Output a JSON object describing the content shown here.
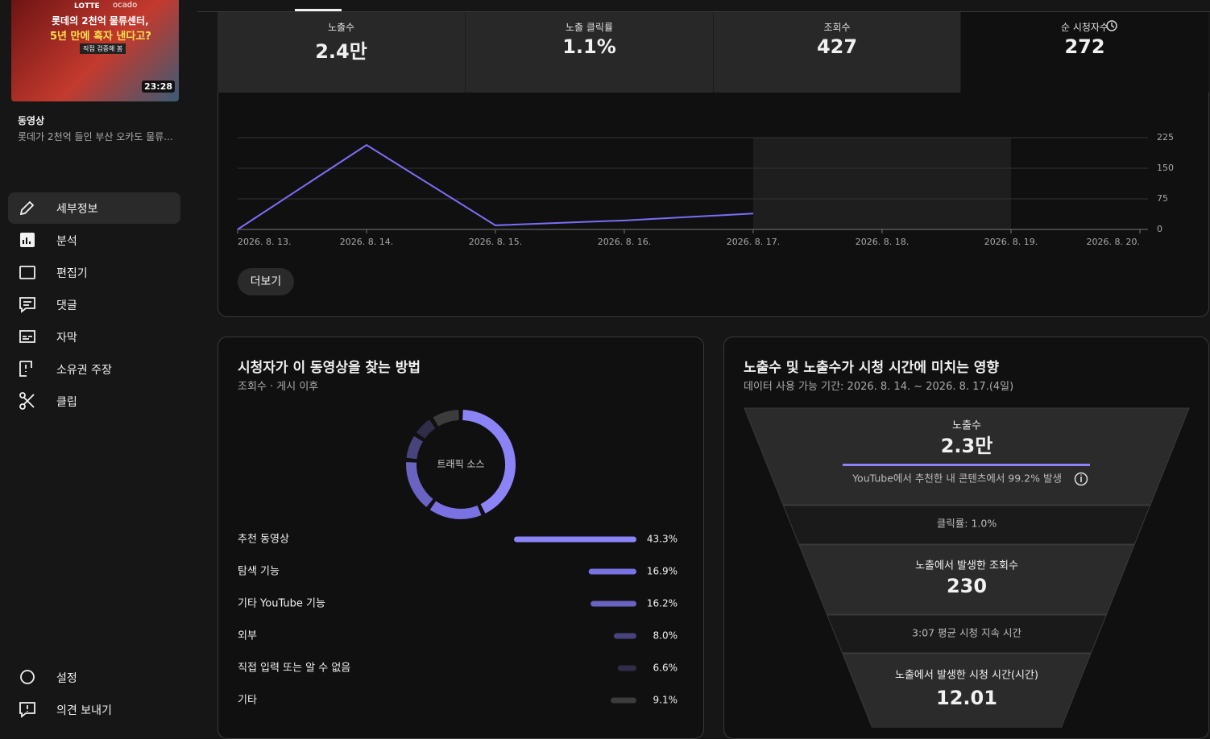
{
  "sidebar": {
    "thumbnail": {
      "brand_left": "LOTTE",
      "brand_right": "ocado",
      "headline_1": "롯데의 2천억 물류센터,",
      "headline_2": "5년 만에 흑자 낸다고?",
      "tagline": "직접 검증해 봄",
      "duration": "23:28"
    },
    "section_label": "동영상",
    "video_title": "롯데가 2천억 들인 부산 오카도 물류...",
    "nav": [
      "세부정보",
      "분석",
      "편집기",
      "댓글",
      "자막",
      "소유권 주장",
      "클립"
    ],
    "footer_nav": [
      "설정",
      "의견 보내기"
    ]
  },
  "metrics": [
    {
      "label": "노출수",
      "value": "2.4만"
    },
    {
      "label": "노출 클릭률",
      "value": "1.1%"
    },
    {
      "label": "조회수",
      "value": "427"
    },
    {
      "label": "순 시청자수",
      "value": "272"
    }
  ],
  "views_chart": {
    "type": "line",
    "categories": [
      "2026. 8. 13.",
      "2026. 8. 14.",
      "2026. 8. 15.",
      "2026. 8. 16.",
      "2026. 8. 17.",
      "2026. 8. 18.",
      "2026. 8. 19.",
      "2026. 8. 20."
    ],
    "series": [
      {
        "color": "#7b6ef6",
        "values": [
          0,
          207,
          10,
          22,
          39,
          null,
          null,
          null
        ]
      }
    ],
    "ylim": [
      0,
      225
    ],
    "yticks": [
      0,
      75,
      150,
      225
    ],
    "grid": true
  },
  "more_button": "더보기",
  "traffic_sources": {
    "type": "donut",
    "title": "시청자가 이 동영상을 찾는 방법",
    "subtitle": "조회수 · 게시 이후",
    "center_label": "트래픽 소스",
    "categories": [
      "추천 동영상",
      "탐색 기능",
      "기타 YouTube 기능",
      "외부",
      "직접 입력 또는 알 수 없음",
      "기타"
    ],
    "values": [
      43.3,
      16.9,
      16.2,
      8.0,
      6.6,
      9.1
    ],
    "value_labels": [
      "43.3%",
      "16.9%",
      "16.2%",
      "8.0%",
      "6.6%",
      "9.1%"
    ],
    "colors": [
      "#8c84f6",
      "#7a72e2",
      "#6a63c2",
      "#48437c",
      "#2f2d48",
      "#3c3c3c"
    ]
  },
  "funnel": {
    "title": "노출수 및 노출수가 시청 시간에 미치는 영향",
    "subtitle": "데이터 사용 가능 기간: 2026. 8. 14. ~ 2026. 8. 17.(4일)",
    "impressions": {
      "label": "노출수",
      "value": "2.3만",
      "note": "YouTube에서 추천한 내 콘텐츠에서 99.2% 발생"
    },
    "ctr": "클릭률: 1.0%",
    "views": {
      "label": "노출에서 발생한 조회수",
      "value": "230"
    },
    "avg_duration": "3:07 평균 시청 지속 시간",
    "watch_time": {
      "label": "노출에서 발생한 시청 시간(시간)",
      "value": "12.01"
    }
  }
}
